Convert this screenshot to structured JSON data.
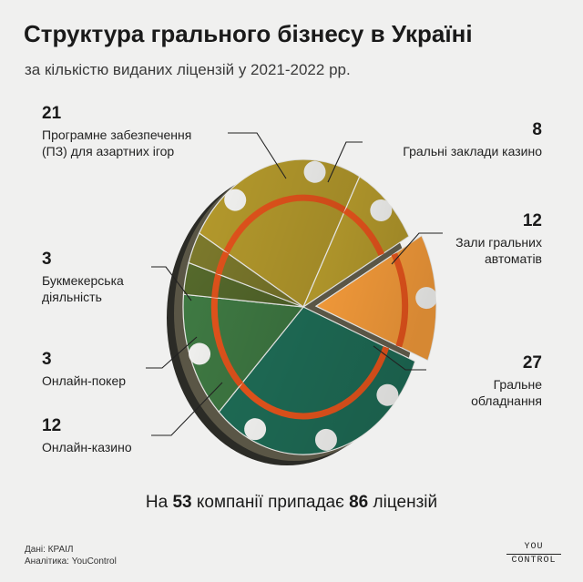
{
  "title": "Структура грального бізнесу в Україні",
  "subtitle": "за кількістю виданих ліцензій у 2021-2022 рр.",
  "chart_data": {
    "type": "pie",
    "unit": "ліцензій",
    "total": 86,
    "slices": [
      {
        "label": "Програмне забезпечення (ПЗ) для азартних ігор",
        "value": 21,
        "color": "#b59a2c"
      },
      {
        "label": "Гральні заклади казино",
        "value": 8,
        "color": "#b59a2c"
      },
      {
        "label": "Зали гральних автоматів",
        "value": 12,
        "color": "#f39a3a"
      },
      {
        "label": "Гральне обладнання",
        "value": 27,
        "color": "#1e6b55"
      },
      {
        "label": "Онлайн-казино",
        "value": 12,
        "color": "#3f7a43"
      },
      {
        "label": "Онлайн-покер",
        "value": 3,
        "color": "#566a2c"
      },
      {
        "label": "Букмекерська діяльність",
        "value": 3,
        "color": "#7d7a2c"
      }
    ]
  },
  "labels": {
    "software": {
      "value": "21",
      "line1": "Програмне забезпечення",
      "line2": "(ПЗ) для азартних ігор"
    },
    "casino": {
      "value": "8",
      "line1": "Гральні заклади казино"
    },
    "slots": {
      "value": "12",
      "line1": "Зали гральних",
      "line2": "автоматів"
    },
    "bookmaker": {
      "value": "3",
      "line1": "Букмекерська",
      "line2": "діяльність"
    },
    "equipment": {
      "value": "27",
      "line1": "Гральне",
      "line2": "обладнання"
    },
    "poker": {
      "value": "3",
      "line1": "Онлайн-покер"
    },
    "online_casino": {
      "value": "12",
      "line1": "Онлайн-казино"
    }
  },
  "footer": {
    "prefix": "На",
    "companies": "53",
    "middle": "компанії припадає",
    "licenses": "86",
    "suffix": "ліцензій"
  },
  "source": {
    "line1": "Дані: КРАІЛ",
    "line2": "Аналітика: YouControl"
  },
  "logo": {
    "line1": "YOU",
    "line2": "CONTROL"
  }
}
